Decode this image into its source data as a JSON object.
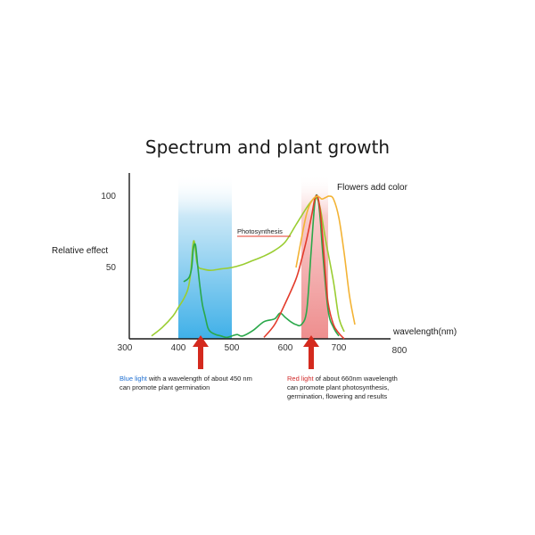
{
  "chart_data": {
    "type": "line",
    "title": "Spectrum and plant growth",
    "xlabel": "wavelength(nm)",
    "ylabel": "Relative effect",
    "xlim": [
      300,
      800
    ],
    "ylim": [
      0,
      100
    ],
    "x_ticks": [
      300,
      400,
      500,
      600,
      700,
      800
    ],
    "y_ticks": [
      50,
      100
    ],
    "grid": false,
    "bands": [
      {
        "name": "blue",
        "x_range": [
          400,
          500
        ],
        "color": "#5bbcea"
      },
      {
        "name": "red",
        "x_range": [
          630,
          680
        ],
        "color": "#f09a9a"
      }
    ],
    "series": [
      {
        "color": "#9acd32",
        "x": [
          350,
          370,
          390,
          400,
          410,
          418,
          423,
          427,
          430,
          434,
          438,
          445,
          460,
          480,
          500,
          520,
          540,
          560,
          580,
          600,
          620,
          640,
          650,
          658,
          665,
          675,
          690,
          700,
          710
        ],
        "y": [
          2,
          8,
          16,
          22,
          28,
          35,
          46,
          65,
          68,
          55,
          50,
          49,
          48,
          49,
          50,
          52,
          55,
          58,
          62,
          68,
          80,
          92,
          97,
          99,
          92,
          70,
          40,
          15,
          5
        ]
      },
      {
        "color": "#2aa84a",
        "x": [
          410,
          420,
          425,
          428,
          432,
          436,
          440,
          445,
          450,
          455,
          460,
          470,
          480,
          490,
          500,
          510,
          520,
          540,
          560,
          580,
          590,
          600,
          610,
          620,
          630,
          640,
          648,
          655,
          660,
          665,
          670,
          680,
          690,
          700
        ],
        "y": [
          40,
          43,
          50,
          63,
          66,
          52,
          38,
          24,
          16,
          8,
          5,
          3,
          2,
          1,
          2,
          3,
          2,
          6,
          12,
          14,
          18,
          15,
          12,
          10,
          10,
          20,
          60,
          95,
          100,
          85,
          60,
          20,
          8,
          2
        ]
      },
      {
        "color": "#e33b2b",
        "x": [
          560,
          580,
          600,
          620,
          630,
          640,
          650,
          655,
          660,
          665,
          670,
          675,
          680,
          690,
          700,
          710
        ],
        "y": [
          1,
          10,
          25,
          42,
          55,
          70,
          88,
          98,
          100,
          90,
          70,
          45,
          25,
          10,
          4,
          0
        ]
      },
      {
        "color": "#f3b335",
        "x": [
          620,
          630,
          640,
          650,
          660,
          668,
          675,
          682,
          690,
          700,
          710,
          720,
          730
        ],
        "y": [
          50,
          70,
          88,
          97,
          100,
          98,
          99,
          100,
          98,
          85,
          60,
          30,
          10
        ]
      }
    ],
    "annotations": [
      {
        "text": "Flowers add color",
        "x": 664,
        "y": 104
      },
      {
        "text": "Photosynthesis",
        "x": 513,
        "y": 75
      }
    ]
  },
  "notes": {
    "blue": {
      "highlight": "Blue light",
      "rest": " with a wavelength of about 450 nm",
      "line2": "can promote plant germination"
    },
    "red": {
      "highlight": "Red light",
      "rest": " of about 660nm wavelength",
      "line2": "can promote plant photosynthesis,",
      "line3": "germination, flowering and results"
    }
  },
  "colors": {
    "axis": "#1a1a1a",
    "arrow": "#d42a1e"
  }
}
